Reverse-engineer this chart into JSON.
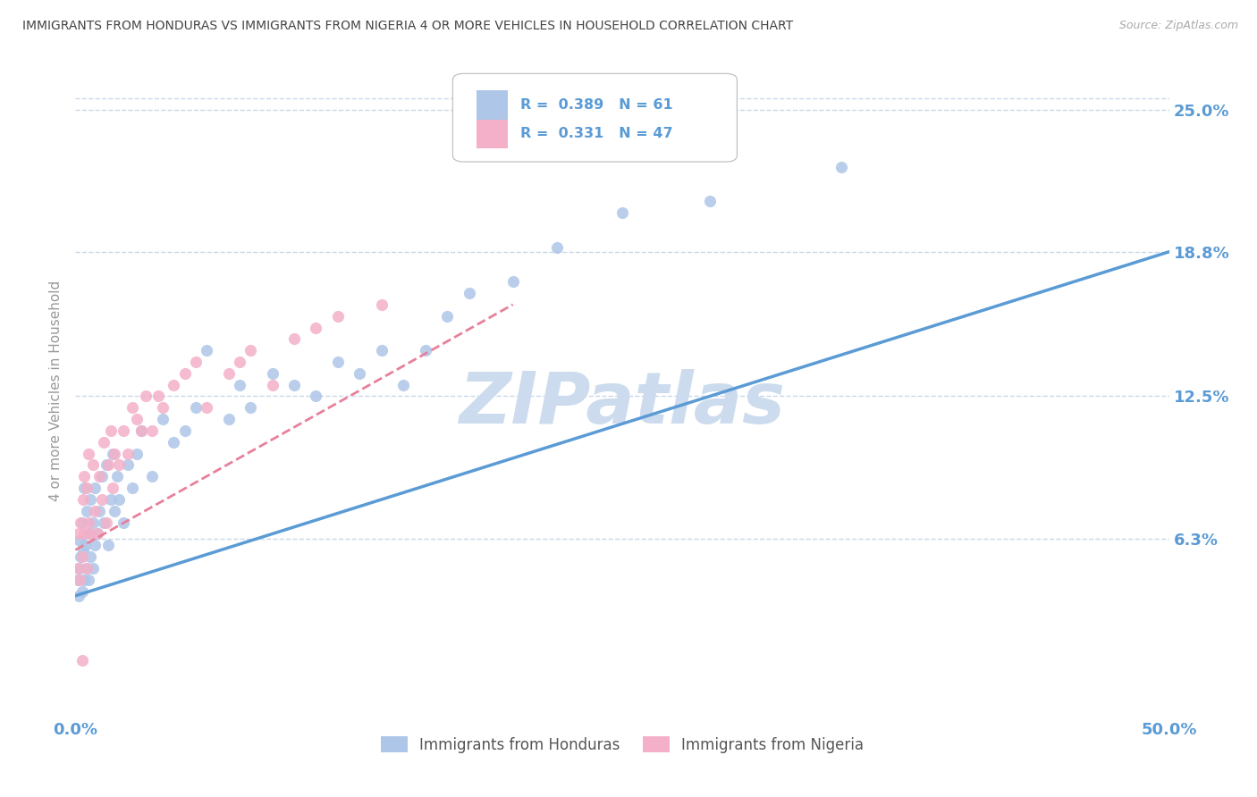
{
  "title": "IMMIGRANTS FROM HONDURAS VS IMMIGRANTS FROM NIGERIA 4 OR MORE VEHICLES IN HOUSEHOLD CORRELATION CHART",
  "source": "Source: ZipAtlas.com",
  "ylabel": "4 or more Vehicles in Household",
  "xlim": [
    0.0,
    50.0
  ],
  "ylim": [
    -1.5,
    27.0
  ],
  "ytick_labels_right": [
    "6.3%",
    "12.5%",
    "18.8%",
    "25.0%"
  ],
  "ytick_values_right": [
    6.3,
    12.5,
    18.8,
    25.0
  ],
  "legend_bottom": [
    {
      "label": "Immigrants from Honduras",
      "color": "#aec6e8"
    },
    {
      "label": "Immigrants from Nigeria",
      "color": "#f4b0c8"
    }
  ],
  "scatter_honduras_color": "#aec6e8",
  "scatter_nigeria_color": "#f4b0c8",
  "line_honduras_color": "#5b9bd5",
  "line_nigeria_color": "#e8809a",
  "background_color": "#ffffff",
  "grid_color": "#c8d8e8",
  "title_color": "#444444",
  "axis_color": "#5b9bd5",
  "watermark_text": "ZIPatlas",
  "watermark_color": "#ccdcee",
  "R_honduras": 0.389,
  "N_honduras": 61,
  "R_nigeria": 0.331,
  "N_nigeria": 47,
  "scatter_honduras_x": [
    0.1,
    0.15,
    0.2,
    0.2,
    0.25,
    0.3,
    0.3,
    0.35,
    0.4,
    0.4,
    0.45,
    0.5,
    0.5,
    0.6,
    0.6,
    0.7,
    0.7,
    0.8,
    0.8,
    0.9,
    0.9,
    1.0,
    1.1,
    1.2,
    1.3,
    1.4,
    1.5,
    1.6,
    1.7,
    1.8,
    1.9,
    2.0,
    2.2,
    2.4,
    2.6,
    2.8,
    3.0,
    3.5,
    4.0,
    4.5,
    5.0,
    5.5,
    6.0,
    7.0,
    7.5,
    8.0,
    9.0,
    10.0,
    11.0,
    12.0,
    13.0,
    14.0,
    15.0,
    16.0,
    17.0,
    18.0,
    20.0,
    22.0,
    25.0,
    29.0,
    35.0
  ],
  "scatter_honduras_y": [
    4.5,
    3.8,
    5.0,
    6.2,
    5.5,
    4.0,
    7.0,
    5.8,
    4.5,
    8.5,
    6.0,
    5.0,
    7.5,
    4.5,
    6.5,
    5.5,
    8.0,
    5.0,
    7.0,
    6.0,
    8.5,
    6.5,
    7.5,
    9.0,
    7.0,
    9.5,
    6.0,
    8.0,
    10.0,
    7.5,
    9.0,
    8.0,
    7.0,
    9.5,
    8.5,
    10.0,
    11.0,
    9.0,
    11.5,
    10.5,
    11.0,
    12.0,
    14.5,
    11.5,
    13.0,
    12.0,
    13.5,
    13.0,
    12.5,
    14.0,
    13.5,
    14.5,
    13.0,
    14.5,
    16.0,
    17.0,
    17.5,
    19.0,
    20.5,
    21.0,
    22.5
  ],
  "scatter_nigeria_x": [
    0.1,
    0.15,
    0.2,
    0.25,
    0.3,
    0.35,
    0.4,
    0.4,
    0.5,
    0.5,
    0.6,
    0.6,
    0.7,
    0.8,
    0.9,
    1.0,
    1.1,
    1.2,
    1.3,
    1.4,
    1.5,
    1.6,
    1.7,
    1.8,
    2.0,
    2.2,
    2.4,
    2.6,
    2.8,
    3.0,
    3.2,
    3.5,
    3.8,
    4.0,
    4.5,
    5.0,
    5.5,
    6.0,
    7.0,
    7.5,
    8.0,
    9.0,
    10.0,
    11.0,
    12.0,
    14.0,
    0.3
  ],
  "scatter_nigeria_y": [
    5.0,
    6.5,
    4.5,
    7.0,
    5.5,
    8.0,
    6.5,
    9.0,
    5.0,
    8.5,
    7.0,
    10.0,
    6.5,
    9.5,
    7.5,
    6.5,
    9.0,
    8.0,
    10.5,
    7.0,
    9.5,
    11.0,
    8.5,
    10.0,
    9.5,
    11.0,
    10.0,
    12.0,
    11.5,
    11.0,
    12.5,
    11.0,
    12.5,
    12.0,
    13.0,
    13.5,
    14.0,
    12.0,
    13.5,
    14.0,
    14.5,
    13.0,
    15.0,
    15.5,
    16.0,
    16.5,
    1.0
  ]
}
